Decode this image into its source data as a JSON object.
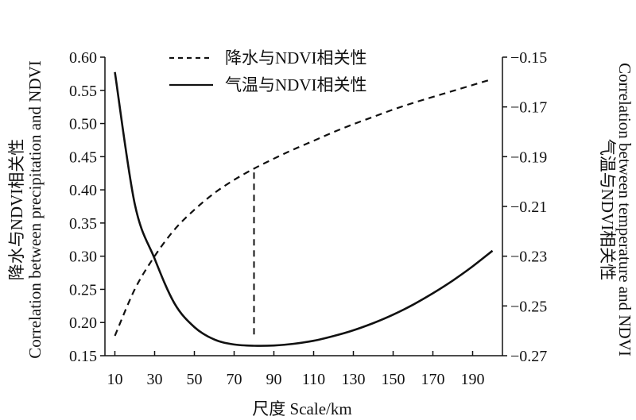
{
  "chart_data": {
    "type": "line",
    "xlabel": "尺度 Scale/km",
    "ylabel_cn": "降水与NDVI相关性",
    "ylabel_en": "Correlation between precipitation and NDVI",
    "y2label_cn": "气温与NDVI相关性",
    "y2label_en": "Correlation between temperature and NDVI",
    "xlim": [
      5,
      205
    ],
    "ylim": [
      0.15,
      0.6
    ],
    "y2lim": [
      -0.27,
      -0.15
    ],
    "x_ticks": [
      "10",
      "30",
      "50",
      "70",
      "90",
      "110",
      "130",
      "150",
      "170",
      "190"
    ],
    "y_ticks": [
      "0.15",
      "0.20",
      "0.25",
      "0.30",
      "0.35",
      "0.40",
      "0.45",
      "0.50",
      "0.55",
      "0.60"
    ],
    "y2_ticks": [
      "−0.27",
      "−0.25",
      "−0.23",
      "−0.21",
      "−0.19",
      "−0.17",
      "−0.15"
    ],
    "legend": {
      "position": "top-center"
    },
    "series": [
      {
        "name": "降水与NDVI相关性",
        "axis": "left",
        "style": "dashed",
        "x": [
          10,
          20,
          30,
          40,
          50,
          60,
          70,
          80,
          90,
          100,
          110,
          120,
          130,
          140,
          150,
          160,
          170,
          180,
          190,
          200
        ],
        "values": [
          0.18,
          0.25,
          0.3,
          0.34,
          0.37,
          0.395,
          0.415,
          0.432,
          0.447,
          0.461,
          0.474,
          0.487,
          0.499,
          0.51,
          0.521,
          0.531,
          0.54,
          0.549,
          0.558,
          0.567
        ]
      },
      {
        "name": "气温与NDVI相关性",
        "axis": "right",
        "style": "solid",
        "x": [
          10,
          20,
          30,
          40,
          50,
          60,
          70,
          80,
          90,
          100,
          110,
          120,
          130,
          140,
          150,
          160,
          170,
          180,
          190,
          200
        ],
        "values": [
          -0.156,
          -0.209,
          -0.231,
          -0.249,
          -0.2585,
          -0.2635,
          -0.2655,
          -0.266,
          -0.2659,
          -0.2652,
          -0.264,
          -0.2621,
          -0.2598,
          -0.2569,
          -0.2535,
          -0.2495,
          -0.2449,
          -0.2398,
          -0.2341,
          -0.2278
        ]
      }
    ],
    "annotations": [
      {
        "type": "vertical-dashed-line",
        "x": 80,
        "y_from": 0.182,
        "y_to": 0.432
      }
    ]
  }
}
